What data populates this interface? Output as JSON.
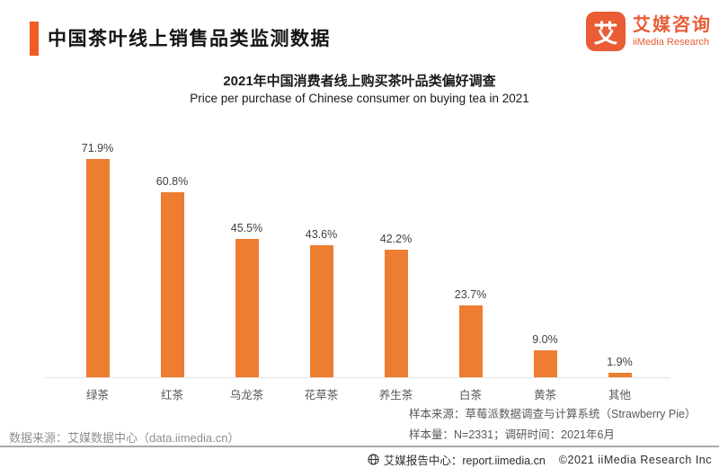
{
  "page": {
    "accent_color": "#F25B21"
  },
  "header": {
    "title": "中国茶叶线上销售品类监测数据",
    "logo": {
      "glyph": "艾",
      "brand_cn": "艾媒咨询",
      "brand_en": "iiMedia Research",
      "color": "#E95C35"
    }
  },
  "chart_data": {
    "type": "bar",
    "title": "2021年中国消费者线上购买茶叶品类偏好调查",
    "subtitle": "Price per purchase of Chinese consumer on buying tea in 2021",
    "categories": [
      "绿茶",
      "红茶",
      "乌龙茶",
      "花草茶",
      "养生茶",
      "白茶",
      "黄茶",
      "其他"
    ],
    "values": [
      71.9,
      60.8,
      45.5,
      43.6,
      42.2,
      23.7,
      9.0,
      1.9
    ],
    "value_labels": [
      "71.9%",
      "60.8%",
      "45.5%",
      "43.6%",
      "42.2%",
      "23.7%",
      "9.0%",
      "1.9%"
    ],
    "bar_color": "#ED7D31",
    "ylim": [
      0,
      80
    ],
    "grid": false,
    "legend": false,
    "xlabel": "",
    "ylabel": ""
  },
  "notes": {
    "data_source": "数据来源：艾媒数据中心（data.iimedia.cn）",
    "sample_source": "样本来源：草莓派数据调查与计算系统（Strawberry Pie）",
    "sample_info": "样本量：N=2331；调研时间：2021年6月"
  },
  "footer": {
    "report_center": "艾媒报告中心：report.iimedia.cn",
    "copyright": "©2021  iiMedia Research  Inc"
  }
}
